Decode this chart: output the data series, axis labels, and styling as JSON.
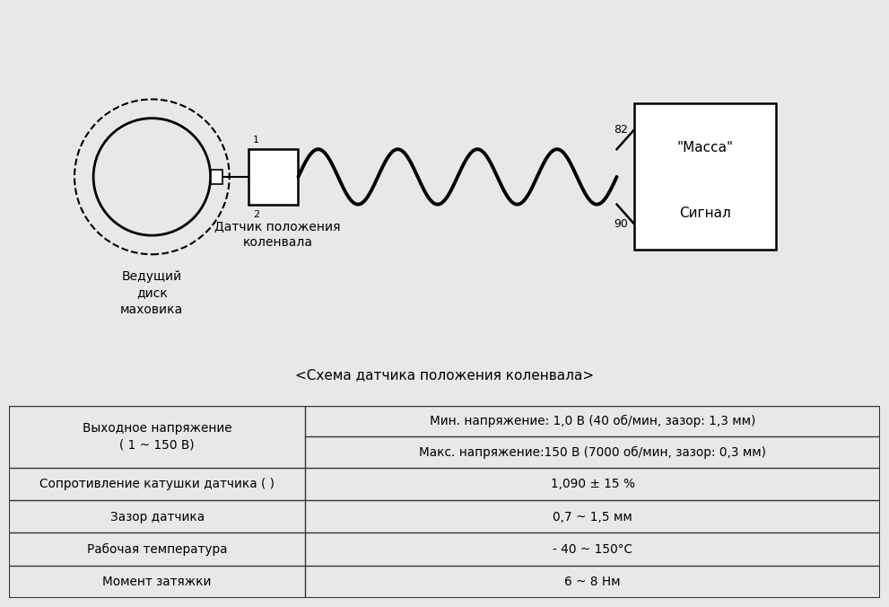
{
  "bg_color": "#e8e8e8",
  "diagram_bg": "#ffffff",
  "table_bg": "#ffffff",
  "title_caption": "<Схема датчика положения коленвала>",
  "disk_label": "Ведущий\nдиск\nмаховика",
  "sensor_label": "Датчик положения\nколенвала",
  "massa_label": "\"Масса\"",
  "signal_label": "Сигнал",
  "pin1_label": "1",
  "pin2_label": "2",
  "pin82_label": "82",
  "pin90_label": "90",
  "table_rows": [
    [
      "Выходное напряжение\n( 1 ~ 150 В)",
      "Мин. напряжение: 1,0 В (40 об/мин, зазор: 1,3 мм)",
      "Макс. напряжение:150 В (7000 об/мин, зазор: 0,3 мм)"
    ],
    [
      "Сопротивление катушки датчика ( )",
      "1,090 ± 15 %",
      ""
    ],
    [
      "Зазор датчика",
      "0,7 ~ 1,5 мм",
      ""
    ],
    [
      "Рабочая температура",
      "- 40 ~ 150°С",
      ""
    ],
    [
      "Момент затяжки",
      "6 ~ 8 Нм",
      ""
    ]
  ],
  "line_color": "#000000",
  "text_color": "#000000",
  "border_color": "#555555"
}
